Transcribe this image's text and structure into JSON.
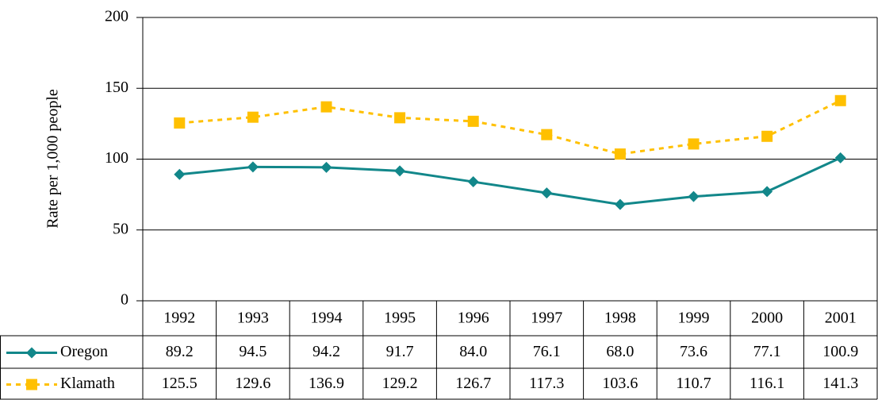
{
  "chart_data": {
    "type": "line",
    "y_label": "Rate per 1,000 people",
    "categories": [
      "1992",
      "1993",
      "1994",
      "1995",
      "1996",
      "1997",
      "1998",
      "1999",
      "2000",
      "2001"
    ],
    "series": [
      {
        "name": "Oregon",
        "color": "#12878a",
        "marker": "diamond",
        "line_style": "solid",
        "values": [
          89.2,
          94.5,
          94.2,
          91.7,
          84.0,
          76.1,
          68.0,
          73.6,
          77.1,
          100.9
        ],
        "value_labels": [
          "89.2",
          "94.5",
          "94.2",
          "91.7",
          "84.0",
          "76.1",
          "68.0",
          "73.6",
          "77.1",
          "100.9"
        ]
      },
      {
        "name": "Klamath",
        "color": "#ffc000",
        "marker": "square",
        "line_style": "dashed",
        "values": [
          125.5,
          129.6,
          136.9,
          129.2,
          126.7,
          117.3,
          103.6,
          110.7,
          116.1,
          141.3
        ],
        "value_labels": [
          "125.5",
          "129.6",
          "136.9",
          "129.2",
          "126.7",
          "117.3",
          "103.6",
          "110.7",
          "116.1",
          "141.3"
        ]
      }
    ],
    "ylim": [
      0,
      200
    ],
    "yticks": [
      0,
      50,
      100,
      150,
      200
    ],
    "grid": true,
    "data_table": true
  }
}
